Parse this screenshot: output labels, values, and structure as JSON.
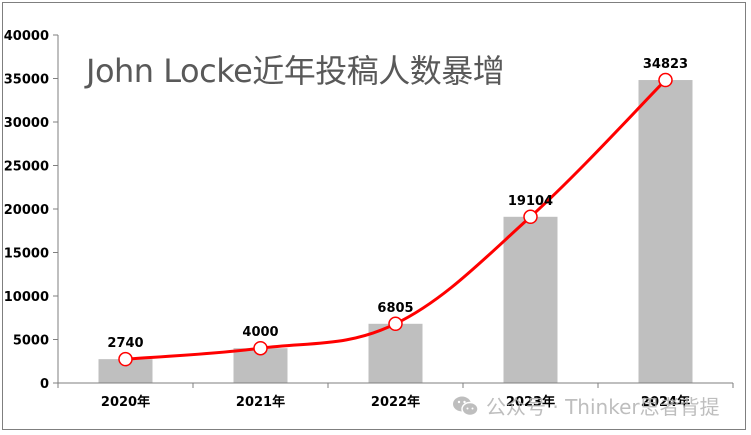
{
  "chart_data": {
    "type": "bar",
    "title": "John Locke近年投稿人数暴增",
    "categories": [
      "2020年",
      "2021年",
      "2022年",
      "2023年",
      "2024年"
    ],
    "series": [
      {
        "name": "投稿人数 (bar)",
        "type": "bar",
        "color": "#bfbfbf",
        "values": [
          2740,
          4000,
          6805,
          19104,
          34823
        ]
      },
      {
        "name": "投稿人数 (line)",
        "type": "line",
        "color": "#ff0000",
        "values": [
          2740,
          4000,
          6805,
          19104,
          34823
        ]
      }
    ],
    "data_labels": [
      "2740",
      "4000",
      "6805",
      "19104",
      "34823"
    ],
    "xlabel": "",
    "ylabel": "",
    "ylim": [
      0,
      40000
    ],
    "yticks": [
      0,
      5000,
      10000,
      15000,
      20000,
      25000,
      30000,
      35000,
      40000
    ],
    "ytick_labels": [
      "0",
      "5000",
      "10000",
      "15000",
      "20000",
      "25000",
      "30000",
      "35000",
      "40000"
    ],
    "grid": false,
    "legend": "none"
  },
  "watermark": {
    "text": "公众号 · Thinker思者背提",
    "icon": "wechat-icon"
  },
  "colors": {
    "bar": "#bfbfbf",
    "line": "#ff0000",
    "marker_fill": "#ffffff",
    "axis": "#7f7f7f",
    "title": "#595959"
  }
}
